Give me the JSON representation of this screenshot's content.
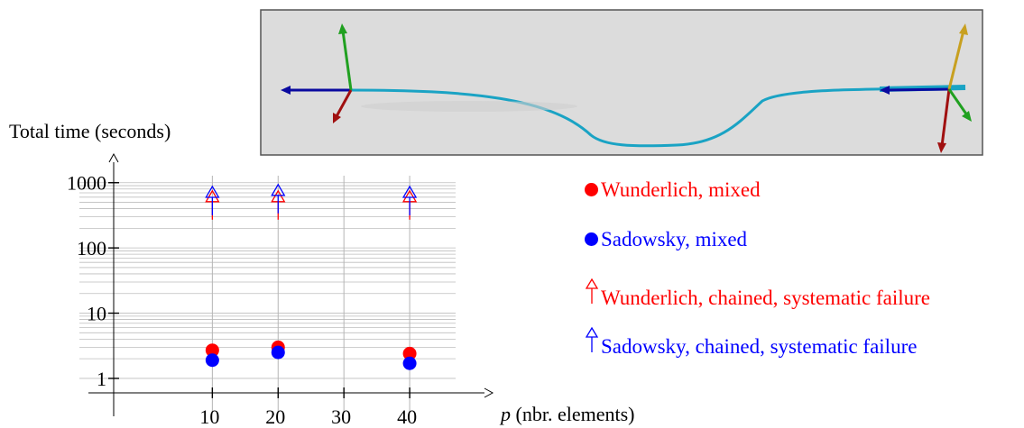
{
  "chart_data": {
    "type": "scatter",
    "title": "",
    "ylabel": "Total time (seconds)",
    "xlabel_italic": "p",
    "xlabel_rest": " (nbr. elements)",
    "y_scale": "log",
    "ylim": [
      0.6,
      1500
    ],
    "xlim": [
      -5,
      50
    ],
    "grid": "vertical major + horizontal log minor",
    "x_ticks": [
      10,
      20,
      30,
      40
    ],
    "x_tick_labels": [
      "10",
      "20",
      "30",
      "40"
    ],
    "y_ticks": [
      1,
      10,
      100,
      1000
    ],
    "y_tick_labels": [
      "1",
      "10",
      "100",
      "1000"
    ],
    "legend_position": "right",
    "series": [
      {
        "name": "Wunderlich, mixed",
        "marker": "filled-circle",
        "color": "#ff0000",
        "x": [
          10,
          20,
          40
        ],
        "y": [
          2.7,
          3.0,
          2.4
        ]
      },
      {
        "name": "Sadowsky, mixed",
        "marker": "filled-circle",
        "color": "#0000ff",
        "x": [
          10,
          20,
          40
        ],
        "y": [
          1.9,
          2.5,
          1.7
        ]
      },
      {
        "name": "Wunderlich, chained, systematic failure",
        "marker": "open-triangle-arrow",
        "color": "#ff0000",
        "x": [
          10,
          20,
          40
        ],
        "y": [
          600,
          600,
          600
        ]
      },
      {
        "name": "Sadowsky, chained, systematic failure",
        "marker": "open-triangle-arrow",
        "color": "#0000ff",
        "x": [
          10,
          20,
          40
        ],
        "y": [
          700,
          750,
          700
        ]
      }
    ]
  },
  "inset_image": {
    "icon": "ribbon-render-with-coordinate-frames",
    "background": "#dcdcdc",
    "ribbon_color": "#1aa3c4",
    "axis_colors": [
      "#0a0aa0",
      "#20a020",
      "#a01010",
      "#c8a020"
    ]
  }
}
